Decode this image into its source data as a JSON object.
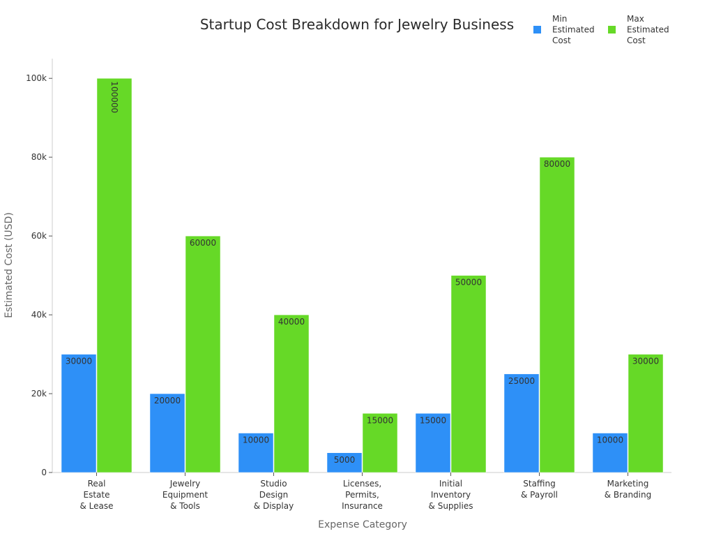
{
  "chart_data": {
    "type": "bar",
    "title": "Startup Cost Breakdown for Jewelry Business",
    "xlabel": "Expense Category",
    "ylabel": "Estimated Cost (USD)",
    "categories": [
      [
        "Real",
        "Estate",
        "& Lease"
      ],
      [
        "Jewelry",
        "Equipment",
        "& Tools"
      ],
      [
        "Studio",
        "Design",
        "& Display"
      ],
      [
        "Licenses,",
        "Permits,",
        "Insurance"
      ],
      [
        "Initial",
        "Inventory",
        "& Supplies"
      ],
      [
        "Staffing",
        "& Payroll"
      ],
      [
        "Marketing",
        "& Branding"
      ]
    ],
    "series": [
      {
        "name": [
          "Min",
          "Estimated",
          "Cost"
        ],
        "color": "#2e90f7",
        "values": [
          30000,
          20000,
          10000,
          5000,
          15000,
          25000,
          10000
        ],
        "labels": [
          "30000",
          "20000",
          "10000",
          "5000",
          "15000",
          "25000",
          "10000"
        ]
      },
      {
        "name": [
          "Max",
          "Estimated",
          "Cost"
        ],
        "color": "#66d927",
        "values": [
          100000,
          60000,
          40000,
          15000,
          50000,
          80000,
          30000
        ],
        "labels": [
          "100000",
          "60000",
          "40000",
          "15000",
          "50000",
          "80000",
          "30000"
        ]
      }
    ],
    "ylim": [
      0,
      105000
    ],
    "yticks": [
      0,
      20000,
      40000,
      60000,
      80000,
      100000
    ],
    "ytick_labels": [
      "0",
      "20k",
      "40k",
      "60k",
      "80k",
      "100k"
    ],
    "grid": false,
    "legend_position": "top-right"
  }
}
